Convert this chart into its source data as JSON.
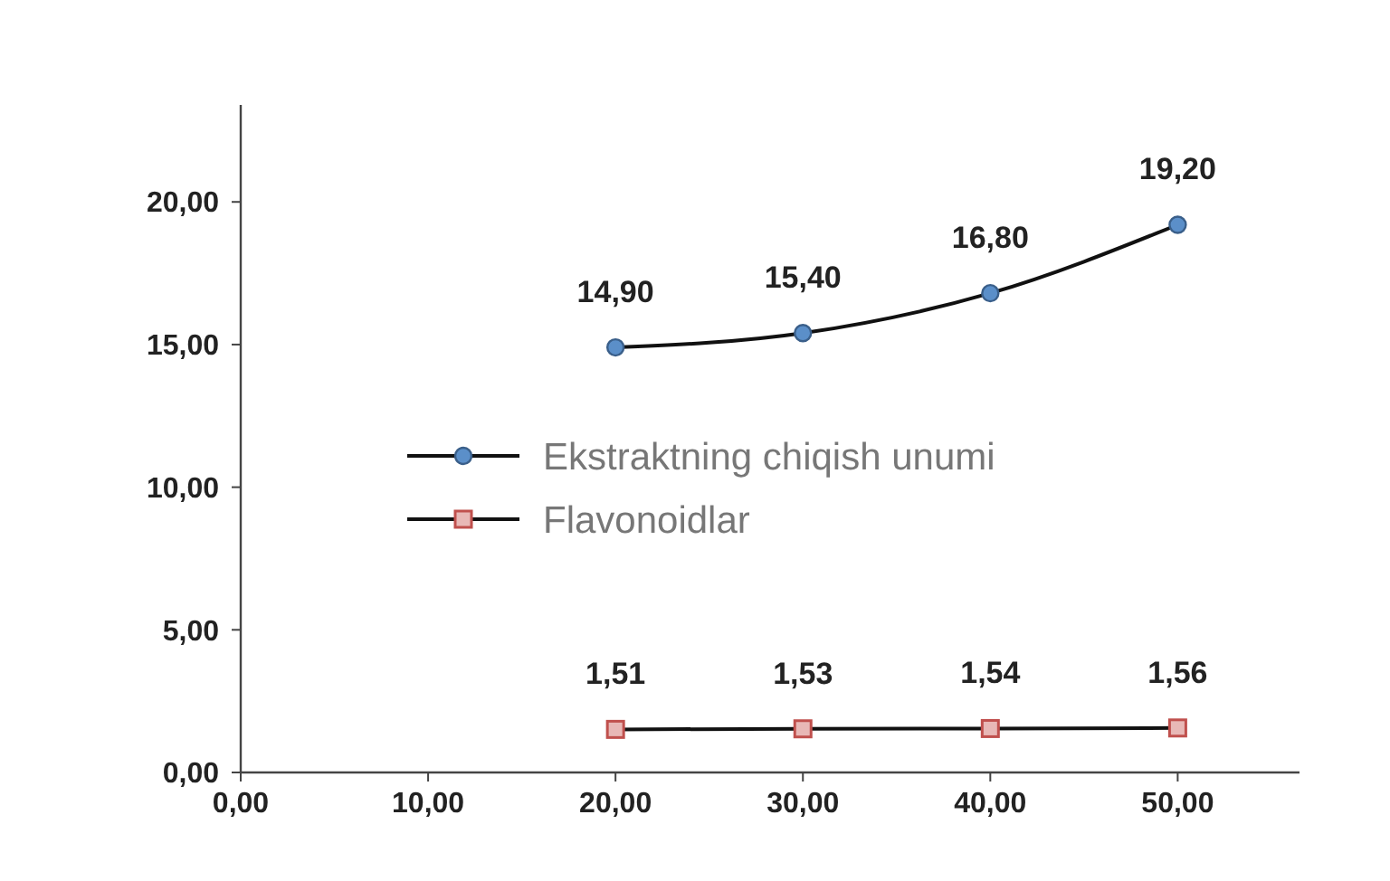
{
  "chart_data": {
    "type": "line",
    "x": [
      20,
      30,
      40,
      50
    ],
    "series": [
      {
        "name": "Ekstraktning chiqish unumi",
        "color": "#5b8fc9",
        "marker": "circle",
        "values": [
          14.9,
          15.4,
          16.8,
          19.2
        ],
        "value_labels": [
          "14,90",
          "15,40",
          "16,80",
          "19,20"
        ]
      },
      {
        "name": "Flavonoidlar",
        "color": "#c0504d",
        "marker": "square",
        "values": [
          1.51,
          1.53,
          1.54,
          1.56
        ],
        "value_labels": [
          "1,51",
          "1,53",
          "1,54",
          "1,56"
        ]
      }
    ],
    "xlim": [
      0,
      56.5
    ],
    "ylim": [
      0,
      23.4
    ],
    "xticks": [
      {
        "value": 0,
        "label": "0,00"
      },
      {
        "value": 10,
        "label": "10,00"
      },
      {
        "value": 20,
        "label": "20,00"
      },
      {
        "value": 30,
        "label": "30,00"
      },
      {
        "value": 40,
        "label": "40,00"
      },
      {
        "value": 50,
        "label": "50,00"
      }
    ],
    "yticks": [
      {
        "value": 0,
        "label": "0,00"
      },
      {
        "value": 5,
        "label": "5,00"
      },
      {
        "value": 10,
        "label": "10,00"
      },
      {
        "value": 15,
        "label": "15,00"
      },
      {
        "value": 20,
        "label": "20,00"
      }
    ],
    "grid": false,
    "legend": "center",
    "line_style": "solid"
  }
}
